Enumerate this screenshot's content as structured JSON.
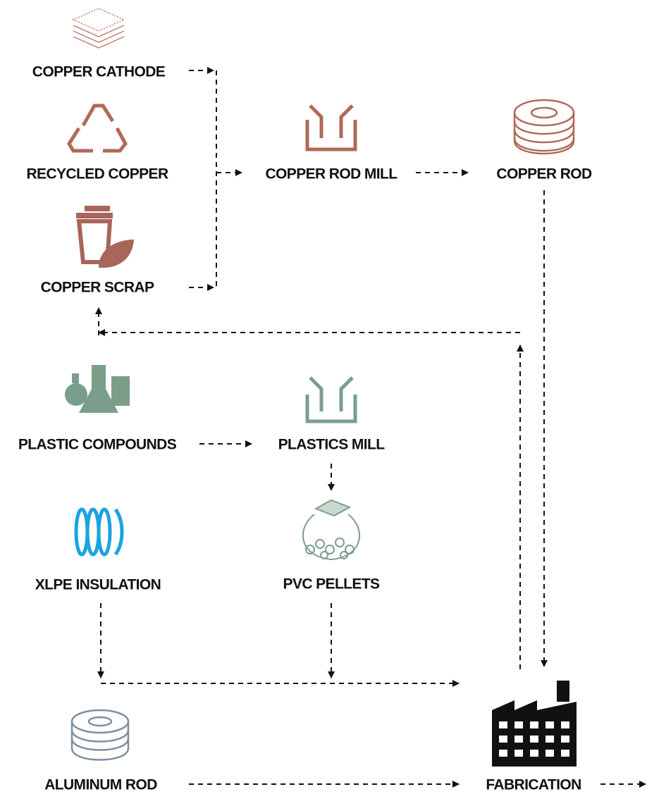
{
  "nodes": [
    {
      "label": "COPPER CATHODE"
    },
    {
      "label": "RECYCLED COPPER"
    },
    {
      "label": "COPPER SCRAP"
    },
    {
      "label": "COPPER ROD MILL"
    },
    {
      "label": "COPPER ROD"
    },
    {
      "label": "PLASTIC COMPOUNDS"
    },
    {
      "label": "PLASTICS MILL"
    },
    {
      "label": "XLPE INSULATION"
    },
    {
      "label": "PVC PELLETS"
    },
    {
      "label": "ALUMINUM ROD"
    },
    {
      "label": "FABRICATION"
    }
  ]
}
